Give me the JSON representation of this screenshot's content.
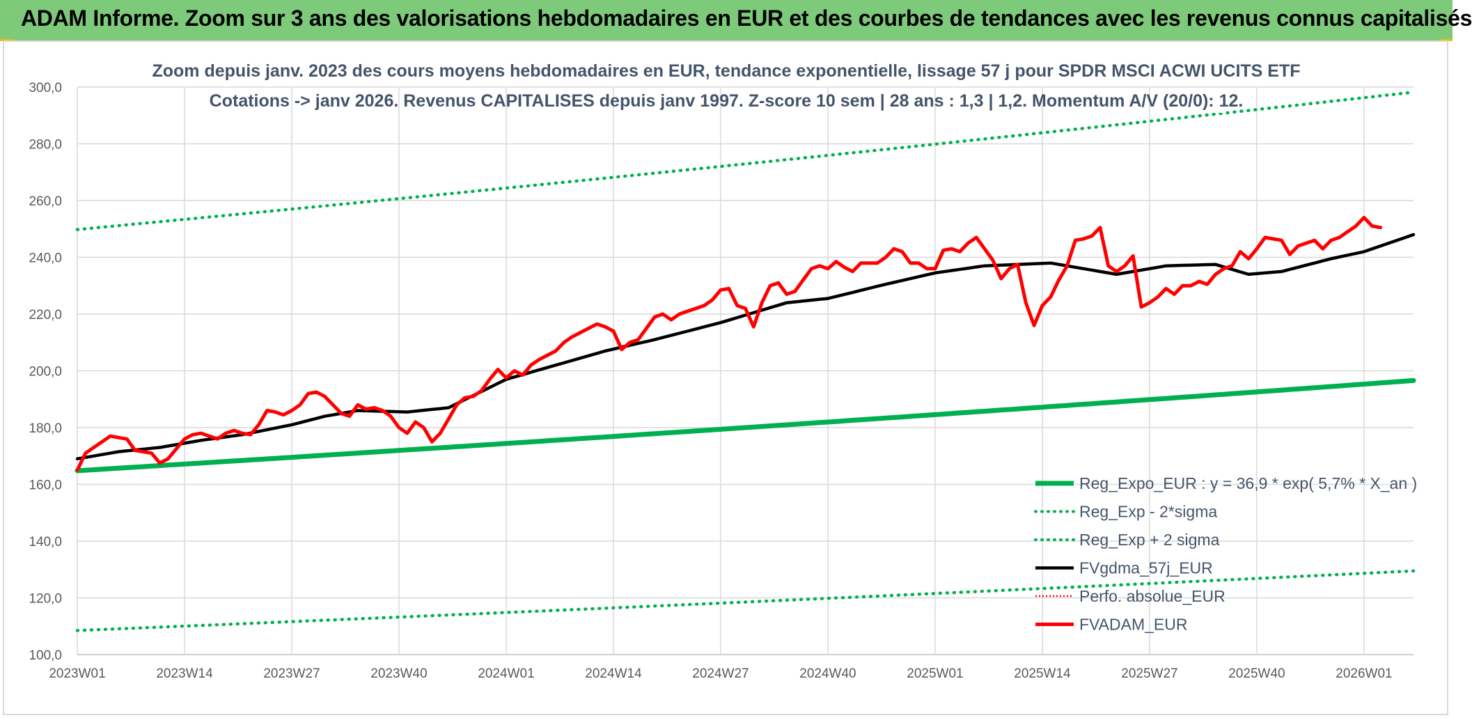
{
  "banner": {
    "title": "ADAM Informe. Zoom sur 3 ans des valorisations hebdomadaires en EUR et des courbes de tendances avec les revenus connus capitalisés"
  },
  "colors": {
    "banner_bg": "#7dca7a",
    "trend": "#00b050",
    "sigma": "#00b050",
    "moving_average": "#000000",
    "perfo": "#ff0000",
    "price": "#ff0000",
    "title_text": "#44546a",
    "axis_text": "#595959",
    "grid": "#d9d9d9"
  },
  "chart_data": {
    "type": "line",
    "title": "Zoom depuis janv. 2023 des cours moyens hebdomadaires en EUR, tendance exponentielle, lissage 57 j pour SPDR MSCI ACWI UCITS ETF",
    "subtitle": "Cotations -> janv 2026. Revenus CAPITALISES depuis janv 1997. Z-score 10 sem | 28 ans : 1,3 | 1,2. Momentum A/V (20/0): 12.",
    "xlabel": "",
    "ylabel": "",
    "ylim": [
      100,
      300
    ],
    "yticks": [
      "100,0",
      "120,0",
      "140,0",
      "160,0",
      "180,0",
      "200,0",
      "220,0",
      "240,0",
      "260,0",
      "280,0",
      "300,0"
    ],
    "x_tick_labels": [
      "2023W01",
      "2023W14",
      "2023W27",
      "2023W40",
      "2024W01",
      "2024W14",
      "2024W27",
      "2024W40",
      "2025W01",
      "2025W14",
      "2025W27",
      "2025W40",
      "2026W01"
    ],
    "weeks_per_tick": 13,
    "n_points": 163,
    "grid": true,
    "legend_position": "bottom-right",
    "legend": [
      "Reg_Expo_EUR : y = 36,9 * exp( 5,7% *  X_an )",
      "Reg_Exp - 2*sigma",
      "Reg_Exp + 2 sigma",
      "FVgdma_57j_EUR",
      "Perfo. absolue_EUR",
      "FVADAM_EUR"
    ],
    "series": [
      {
        "name": "Reg_Expo_EUR : y = 36,9 * exp( 5,7% *  X_an )",
        "style": "solid-thick",
        "start_value": 164.8,
        "end_value": 196.6
      },
      {
        "name": "Reg_Exp - 2*sigma",
        "style": "dotted",
        "start_value": 108.5,
        "end_value": 129.5
      },
      {
        "name": "Reg_Exp + 2 sigma",
        "style": "dotted",
        "start_value": 249.8,
        "end_value": 298.2
      },
      {
        "name": "FVgdma_57j_EUR",
        "style": "solid-black",
        "keypoints": [
          [
            0,
            169
          ],
          [
            5,
            171.5
          ],
          [
            10,
            173
          ],
          [
            15,
            175.5
          ],
          [
            20,
            177.5
          ],
          [
            26,
            181
          ],
          [
            30,
            184
          ],
          [
            34,
            186
          ],
          [
            40,
            185.5
          ],
          [
            45,
            187
          ],
          [
            52,
            197
          ],
          [
            58,
            202
          ],
          [
            64,
            207
          ],
          [
            70,
            211
          ],
          [
            78,
            217
          ],
          [
            86,
            224
          ],
          [
            91,
            225.5
          ],
          [
            98,
            230.5
          ],
          [
            104,
            234.5
          ],
          [
            110,
            237
          ],
          [
            118,
            238
          ],
          [
            122,
            236
          ],
          [
            126,
            234
          ],
          [
            132,
            237
          ],
          [
            138,
            237.5
          ],
          [
            142,
            234
          ],
          [
            146,
            235
          ],
          [
            152,
            239.5
          ],
          [
            156,
            242
          ],
          [
            162,
            248
          ]
        ]
      },
      {
        "name": "Perfo. absolue_EUR",
        "style": "dotted-red",
        "values": []
      },
      {
        "name": "FVADAM_EUR",
        "style": "solid-red",
        "keypoints": [
          [
            0,
            165
          ],
          [
            1,
            171
          ],
          [
            2,
            173
          ],
          [
            3,
            175
          ],
          [
            4,
            177
          ],
          [
            5,
            176.5
          ],
          [
            6,
            176
          ],
          [
            7,
            172
          ],
          [
            8,
            171.5
          ],
          [
            9,
            171
          ],
          [
            10,
            167.5
          ],
          [
            11,
            169
          ],
          [
            12,
            172.5
          ],
          [
            13,
            176
          ],
          [
            14,
            177.5
          ],
          [
            15,
            178
          ],
          [
            16,
            177
          ],
          [
            17,
            176
          ],
          [
            18,
            178
          ],
          [
            19,
            179
          ],
          [
            20,
            178
          ],
          [
            21,
            177.5
          ],
          [
            22,
            181
          ],
          [
            23,
            186
          ],
          [
            24,
            185.5
          ],
          [
            25,
            184.5
          ],
          [
            26,
            186
          ],
          [
            27,
            188
          ],
          [
            28,
            192
          ],
          [
            29,
            192.5
          ],
          [
            30,
            191
          ],
          [
            31,
            188
          ],
          [
            32,
            185
          ],
          [
            33,
            184
          ],
          [
            34,
            188
          ],
          [
            35,
            186.5
          ],
          [
            36,
            187
          ],
          [
            37,
            186
          ],
          [
            38,
            184
          ],
          [
            39,
            180
          ],
          [
            40,
            178
          ],
          [
            41,
            182
          ],
          [
            42,
            180
          ],
          [
            43,
            175
          ],
          [
            44,
            178
          ],
          [
            45,
            183
          ],
          [
            46,
            188
          ],
          [
            47,
            190.5
          ],
          [
            48,
            191
          ],
          [
            49,
            193
          ],
          [
            50,
            197
          ],
          [
            51,
            200.5
          ],
          [
            52,
            197.5
          ],
          [
            53,
            200
          ],
          [
            54,
            198.5
          ],
          [
            55,
            202
          ],
          [
            56,
            204
          ],
          [
            57,
            205.5
          ],
          [
            58,
            207
          ],
          [
            59,
            210
          ],
          [
            60,
            212
          ],
          [
            61,
            213.5
          ],
          [
            62,
            215
          ],
          [
            63,
            216.5
          ],
          [
            64,
            215.5
          ],
          [
            65,
            214
          ],
          [
            66,
            207.5
          ],
          [
            67,
            210
          ],
          [
            68,
            211
          ],
          [
            69,
            215
          ],
          [
            70,
            219
          ],
          [
            71,
            220
          ],
          [
            72,
            218
          ],
          [
            73,
            220
          ],
          [
            74,
            221
          ],
          [
            75,
            222
          ],
          [
            76,
            223
          ],
          [
            77,
            225
          ],
          [
            78,
            228.5
          ],
          [
            79,
            229
          ],
          [
            80,
            223
          ],
          [
            81,
            222
          ],
          [
            82,
            215.5
          ],
          [
            83,
            224
          ],
          [
            84,
            230
          ],
          [
            85,
            231
          ],
          [
            86,
            227
          ],
          [
            87,
            228
          ],
          [
            88,
            232
          ],
          [
            89,
            236
          ],
          [
            90,
            237
          ],
          [
            91,
            236
          ],
          [
            92,
            238.5
          ],
          [
            93,
            236.5
          ],
          [
            94,
            235
          ],
          [
            95,
            238
          ],
          [
            96,
            238
          ],
          [
            97,
            238
          ],
          [
            98,
            240
          ],
          [
            99,
            243
          ],
          [
            100,
            242
          ],
          [
            101,
            238
          ],
          [
            102,
            238
          ],
          [
            103,
            236
          ],
          [
            104,
            236
          ],
          [
            105,
            242.5
          ],
          [
            106,
            243
          ],
          [
            107,
            242
          ],
          [
            108,
            245
          ],
          [
            109,
            247
          ],
          [
            110,
            243
          ],
          [
            111,
            239
          ],
          [
            112,
            232.5
          ],
          [
            113,
            236
          ],
          [
            114,
            237.5
          ],
          [
            115,
            224
          ],
          [
            116,
            216
          ],
          [
            117,
            223
          ],
          [
            118,
            226
          ],
          [
            119,
            232
          ],
          [
            120,
            237
          ],
          [
            121,
            246
          ],
          [
            122,
            246.5
          ],
          [
            123,
            247.5
          ],
          [
            124,
            250.5
          ],
          [
            125,
            237
          ],
          [
            126,
            235
          ],
          [
            127,
            237
          ],
          [
            128,
            240.5
          ],
          [
            129,
            222.5
          ],
          [
            130,
            224
          ],
          [
            131,
            226
          ],
          [
            132,
            229
          ],
          [
            133,
            227
          ],
          [
            134,
            230
          ],
          [
            135,
            230
          ],
          [
            136,
            231.5
          ],
          [
            137,
            230.5
          ],
          [
            138,
            234
          ],
          [
            139,
            236
          ],
          [
            140,
            237
          ],
          [
            141,
            242
          ],
          [
            142,
            239.5
          ],
          [
            143,
            243
          ],
          [
            144,
            247
          ],
          [
            145,
            246.5
          ],
          [
            146,
            246
          ],
          [
            147,
            241
          ],
          [
            148,
            244
          ],
          [
            149,
            245
          ],
          [
            150,
            246
          ],
          [
            151,
            243
          ],
          [
            152,
            246
          ],
          [
            153,
            247
          ],
          [
            154,
            249
          ],
          [
            155,
            251
          ],
          [
            156,
            254
          ],
          [
            157,
            251
          ],
          [
            158,
            250.5
          ]
        ]
      }
    ]
  }
}
